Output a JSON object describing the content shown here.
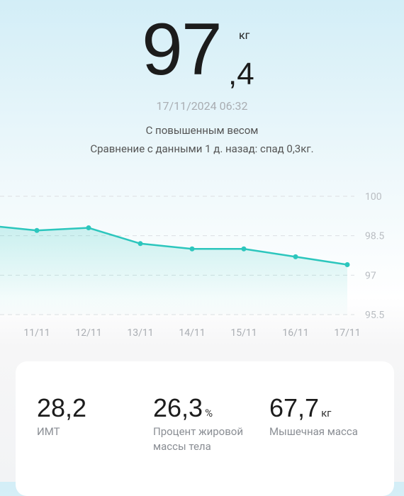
{
  "header": {
    "weight_integer": "97",
    "weight_decimal": ",4",
    "unit": "кг",
    "date": "17/11/2024 06:32",
    "status": "С повышенным весом",
    "comparison": "Сравнение с данными 1 д. назад: спад 0,3кг."
  },
  "chart_data": {
    "type": "line",
    "categories": [
      null,
      "11/11",
      "12/11",
      "13/11",
      "14/11",
      "15/11",
      "16/11",
      "17/11"
    ],
    "series": [
      {
        "color": "#2cc6bd",
        "values": [
          98.9,
          98.7,
          98.8,
          98.2,
          98.0,
          98.0,
          97.7,
          97.4
        ]
      }
    ],
    "ylim": [
      95.5,
      100
    ],
    "yticks": [
      {
        "value": 100,
        "label": "100"
      },
      {
        "value": 98.5,
        "label": "98.5"
      },
      {
        "value": 97,
        "label": "97"
      },
      {
        "value": 95.5,
        "label": "95.5"
      }
    ],
    "grid": true
  },
  "stats": [
    {
      "value": "28,2",
      "label": "ИМТ"
    },
    {
      "value": "26,3",
      "unit": "%",
      "label": "Процент жировой массы тела"
    },
    {
      "value": "67,7",
      "unit": "кг",
      "label": "Мышечная масса"
    }
  ]
}
